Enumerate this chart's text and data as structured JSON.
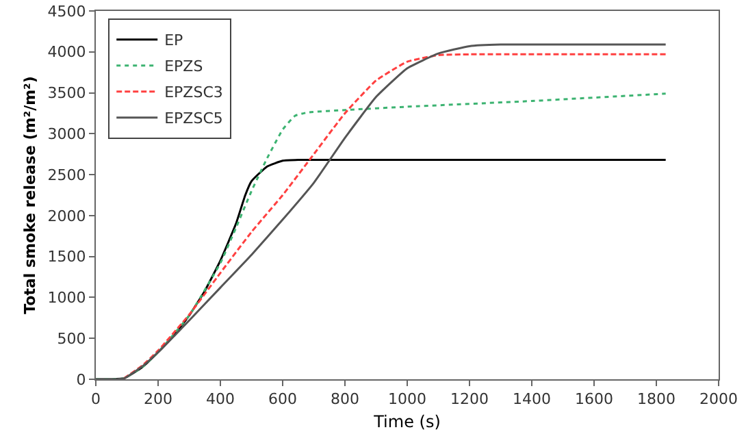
{
  "chart_data": {
    "type": "line",
    "xlabel": "Time (s)",
    "ylabel": "Total smoke release (m²/m²)",
    "xlim": [
      0,
      2000
    ],
    "xticks": [
      0,
      200,
      400,
      600,
      800,
      1000,
      1200,
      1400,
      1600,
      1800,
      2000
    ],
    "ylim": [
      0,
      4500
    ],
    "yticks": [
      0,
      500,
      1000,
      1500,
      2000,
      2500,
      3000,
      3500,
      4000,
      4500
    ],
    "grid": false,
    "legend": "top left",
    "marker": "none",
    "series": [
      {
        "name": "EP",
        "color": "#000000",
        "line_style": "solid",
        "x": [
          0,
          50,
          90,
          150,
          200,
          250,
          300,
          350,
          400,
          450,
          480,
          500,
          550,
          600,
          650,
          1830
        ],
        "values": [
          0,
          0,
          10,
          150,
          330,
          530,
          780,
          1080,
          1450,
          1900,
          2250,
          2420,
          2600,
          2670,
          2680,
          2680
        ]
      },
      {
        "name": "EPZS",
        "color": "#3cb371",
        "line_style": "dotted",
        "x": [
          0,
          50,
          90,
          150,
          200,
          300,
          400,
          450,
          500,
          550,
          600,
          640,
          680,
          800,
          1000,
          1400,
          1830
        ],
        "values": [
          0,
          0,
          10,
          150,
          330,
          780,
          1420,
          1850,
          2300,
          2700,
          3050,
          3220,
          3260,
          3290,
          3330,
          3400,
          3490
        ]
      },
      {
        "name": "EPZSC3",
        "color": "#ff4040",
        "line_style": "dashed",
        "x": [
          90,
          150,
          200,
          300,
          400,
          500,
          600,
          700,
          800,
          900,
          1000,
          1100,
          1200,
          1830
        ],
        "values": [
          10,
          170,
          350,
          790,
          1300,
          1800,
          2250,
          2750,
          3250,
          3650,
          3880,
          3960,
          3970,
          3970
        ]
      },
      {
        "name": "EPZSC5",
        "color": "#555555",
        "line_style": "solid",
        "x": [
          0,
          50,
          90,
          150,
          200,
          300,
          400,
          500,
          600,
          700,
          800,
          900,
          1000,
          1100,
          1200,
          1300,
          1830
        ],
        "values": [
          0,
          0,
          10,
          160,
          330,
          720,
          1120,
          1520,
          1950,
          2400,
          2950,
          3450,
          3800,
          3980,
          4070,
          4090,
          4090
        ]
      }
    ]
  }
}
